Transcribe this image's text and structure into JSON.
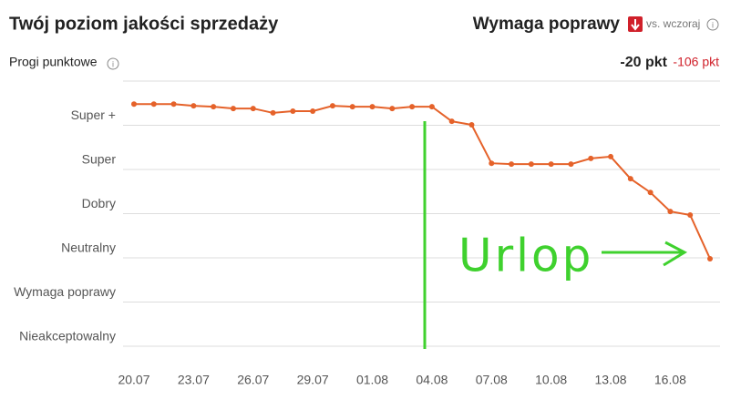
{
  "chart_data": {
    "type": "line",
    "title": "Twój poziom jakości sprzedaży",
    "status": "Wymaga poprawy",
    "comparison": "vs. wczoraj",
    "y_axis_label": "Progi punktowe",
    "score": "-20 pkt",
    "change": "-106 pkt",
    "annotations": [
      "Urlop"
    ],
    "categories": [
      "20.07",
      null,
      null,
      "23.07",
      null,
      null,
      "26.07",
      null,
      null,
      "29.07",
      null,
      null,
      "01.08",
      null,
      null,
      "04.08",
      null,
      null,
      "07.08",
      null,
      null,
      "10.08",
      null,
      null,
      "13.08",
      null,
      null,
      "16.08",
      null,
      null
    ],
    "values": [
      5.48,
      5.48,
      5.48,
      5.44,
      5.42,
      5.38,
      5.38,
      5.28,
      5.32,
      5.32,
      5.44,
      5.42,
      5.42,
      5.38,
      5.42,
      5.42,
      5.09,
      5.01,
      4.14,
      4.12,
      4.12,
      4.12,
      4.12,
      4.25,
      4.29,
      3.79,
      3.48,
      3.05,
      2.97,
      1.98
    ],
    "color": "#e5622a",
    "ylim": [
      0,
      6
    ],
    "yticks": [
      {
        "value": 0,
        "label": "Nieakceptowalny"
      },
      {
        "value": 1,
        "label": "Wymaga poprawy"
      },
      {
        "value": 2,
        "label": "Neutralny"
      },
      {
        "value": 3,
        "label": "Dobry"
      },
      {
        "value": 4,
        "label": "Super"
      },
      {
        "value": 5,
        "label": "Super +"
      }
    ],
    "grid": true
  }
}
